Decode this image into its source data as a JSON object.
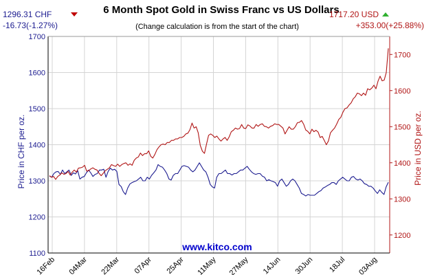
{
  "header": {
    "title": "6 Month Spot Gold in Swiss Franc vs US Dollars",
    "subtitle": "(Change calculation is from the start of the chart)",
    "chf_price": "1296.31 CHF",
    "chf_change": "-16.73(-1.27%)",
    "usd_price": "1717.20 USD",
    "usd_change": "+353.00(+25.88%)",
    "watermark": "www.kitco.com"
  },
  "colors": {
    "chf": "#1b1b8f",
    "usd": "#b01414",
    "down_arrow": "#c00000",
    "up_arrow": "#2fb02f",
    "watermark": "#0000cc",
    "grid": "#d4d4d4"
  },
  "chart_data": {
    "type": "line",
    "title": "6 Month Spot Gold in Swiss Franc vs US Dollars",
    "x_tick_labels": [
      "16Feb",
      "04Mar",
      "22Mar",
      "07Apr",
      "25Apr",
      "11May",
      "27May",
      "14Jun",
      "30Jun",
      "18Jul",
      "03Aug"
    ],
    "grid": true,
    "y_left": {
      "label": "Price in CHF per oz.",
      "range": [
        1100,
        1700
      ],
      "ticks": [
        1100,
        1200,
        1300,
        1400,
        1500,
        1600,
        1700
      ]
    },
    "y_right": {
      "label": "Price in USD per oz.",
      "range": [
        1150,
        1750
      ],
      "ticks": [
        1200,
        1300,
        1400,
        1500,
        1600,
        1700
      ]
    },
    "series": [
      {
        "name": "CHF",
        "axis": "left",
        "values": [
          1313,
          1310,
          1320,
          1325,
          1326,
          1318,
          1330,
          1320,
          1325,
          1330,
          1315,
          1322,
          1319,
          1328,
          1305,
          1310,
          1312,
          1322,
          1330,
          1322,
          1312,
          1318,
          1320,
          1330,
          1330,
          1332,
          1310,
          1326,
          1335,
          1330,
          1332,
          1326,
          1290,
          1284,
          1270,
          1262,
          1280,
          1291,
          1295,
          1298,
          1300,
          1305,
          1310,
          1300,
          1300,
          1310,
          1305,
          1315,
          1322,
          1330,
          1345,
          1340,
          1338,
          1330,
          1320,
          1305,
          1302,
          1315,
          1320,
          1320,
          1330,
          1340,
          1342,
          1340,
          1338,
          1330,
          1325,
          1330,
          1340,
          1350,
          1340,
          1330,
          1325,
          1310,
          1290,
          1283,
          1280,
          1310,
          1320,
          1320,
          1325,
          1330,
          1320,
          1320,
          1316,
          1320,
          1320,
          1325,
          1330,
          1330,
          1335,
          1340,
          1332,
          1325,
          1320,
          1318,
          1320,
          1320,
          1313,
          1310,
          1300,
          1303,
          1300,
          1298,
          1295,
          1285,
          1300,
          1305,
          1295,
          1285,
          1290,
          1300,
          1305,
          1300,
          1290,
          1280,
          1265,
          1262,
          1258,
          1262,
          1260,
          1260,
          1260,
          1265,
          1270,
          1273,
          1280,
          1283,
          1287,
          1290,
          1295,
          1295,
          1290,
          1300,
          1305,
          1310,
          1305,
          1300,
          1300,
          1310,
          1312,
          1305,
          1302,
          1305,
          1300,
          1292,
          1290,
          1285,
          1285,
          1280,
          1272,
          1265,
          1275,
          1268,
          1262,
          1283,
          1296
        ]
      },
      {
        "name": "USD",
        "axis": "right",
        "values": [
          1364,
          1360,
          1362,
          1354,
          1362,
          1366,
          1372,
          1368,
          1370,
          1376,
          1366,
          1374,
          1380,
          1374,
          1385,
          1386,
          1388,
          1393,
          1377,
          1378,
          1383,
          1386,
          1382,
          1380,
          1371,
          1364,
          1371,
          1378,
          1382,
          1386,
          1395,
          1392,
          1390,
          1396,
          1390,
          1395,
          1398,
          1400,
          1393,
          1397,
          1393,
          1407,
          1413,
          1416,
          1427,
          1420,
          1425,
          1425,
          1433,
          1418,
          1413,
          1423,
          1436,
          1444,
          1450,
          1452,
          1450,
          1456,
          1456,
          1462,
          1462,
          1466,
          1466,
          1470,
          1470,
          1473,
          1480,
          1482,
          1492,
          1510,
          1496,
          1500,
          1483,
          1448,
          1432,
          1426,
          1452,
          1476,
          1480,
          1476,
          1470,
          1474,
          1466,
          1460,
          1466,
          1470,
          1462,
          1472,
          1486,
          1490,
          1496,
          1493,
          1495,
          1506,
          1496,
          1495,
          1505,
          1502,
          1496,
          1496,
          1506,
          1501,
          1506,
          1508,
          1501,
          1500,
          1496,
          1501,
          1503,
          1508,
          1506,
          1506,
          1501,
          1496,
          1480,
          1490,
          1500,
          1493,
          1493,
          1500,
          1511,
          1512,
          1517,
          1507,
          1491,
          1487,
          1480,
          1493,
          1486,
          1490,
          1485,
          1470,
          1473,
          1462,
          1450,
          1460,
          1483,
          1490,
          1496,
          1507,
          1520,
          1526,
          1540,
          1550,
          1552,
          1560,
          1566,
          1577,
          1583,
          1593,
          1591,
          1586,
          1593,
          1587,
          1605,
          1602,
          1607,
          1615,
          1605,
          1626,
          1640,
          1627,
          1629,
          1650,
          1717
        ]
      }
    ]
  }
}
